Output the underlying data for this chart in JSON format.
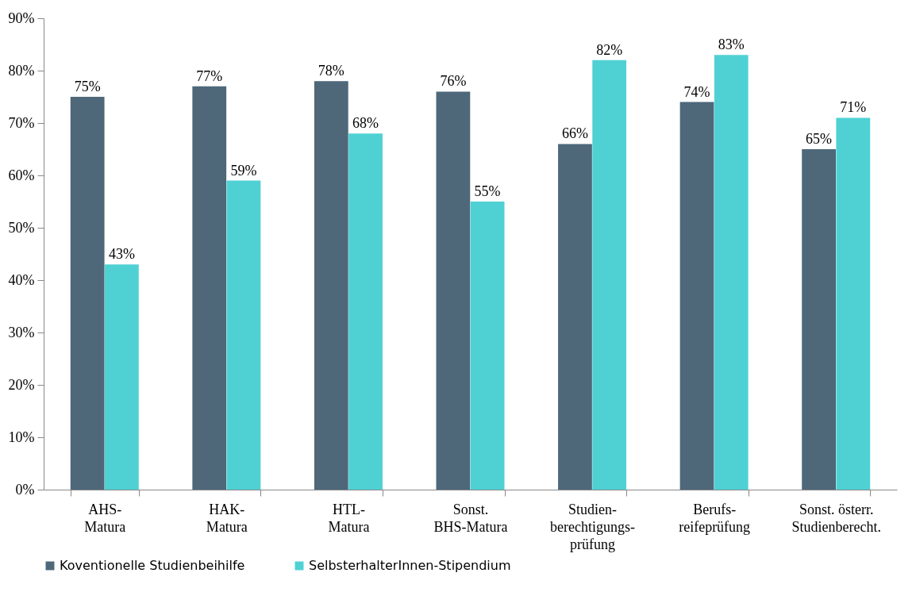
{
  "chart_data": {
    "type": "bar",
    "categories": [
      "AHS-\nMatura",
      "HAK-\nMatura",
      "HTL-\nMatura",
      "Sonst.\nBHS-Matura",
      "Studien-\nberechtigungs-\nprüfung",
      "Berufs-\nreifeprüfung",
      "Sonst. österr.\nStudienberecht."
    ],
    "series": [
      {
        "name": "Koventionelle Studienbeihilfe",
        "color": "#4e687a",
        "values": [
          75,
          77,
          78,
          76,
          66,
          74,
          65
        ],
        "value_labels": [
          "75%",
          "77%",
          "78%",
          "76%",
          "66%",
          "74%",
          "65%"
        ]
      },
      {
        "name": "SelbsterhalterInnen-Stipendium",
        "color": "#4fd1d4",
        "values": [
          43,
          59,
          68,
          55,
          82,
          83,
          71
        ],
        "value_labels": [
          "43%",
          "59%",
          "68%",
          "55%",
          "82%",
          "83%",
          "71%"
        ]
      }
    ],
    "ylim": [
      0,
      90
    ],
    "yticks": [
      {
        "value": 0,
        "label": "0%"
      },
      {
        "value": 10,
        "label": "10%"
      },
      {
        "value": 20,
        "label": "20%"
      },
      {
        "value": 30,
        "label": "30%"
      },
      {
        "value": 40,
        "label": "40%"
      },
      {
        "value": 50,
        "label": "50%"
      },
      {
        "value": 60,
        "label": "60%"
      },
      {
        "value": 70,
        "label": "70%"
      },
      {
        "value": 80,
        "label": "80%"
      },
      {
        "value": 90,
        "label": "90%"
      }
    ],
    "grid": false,
    "legend": "bottom"
  }
}
